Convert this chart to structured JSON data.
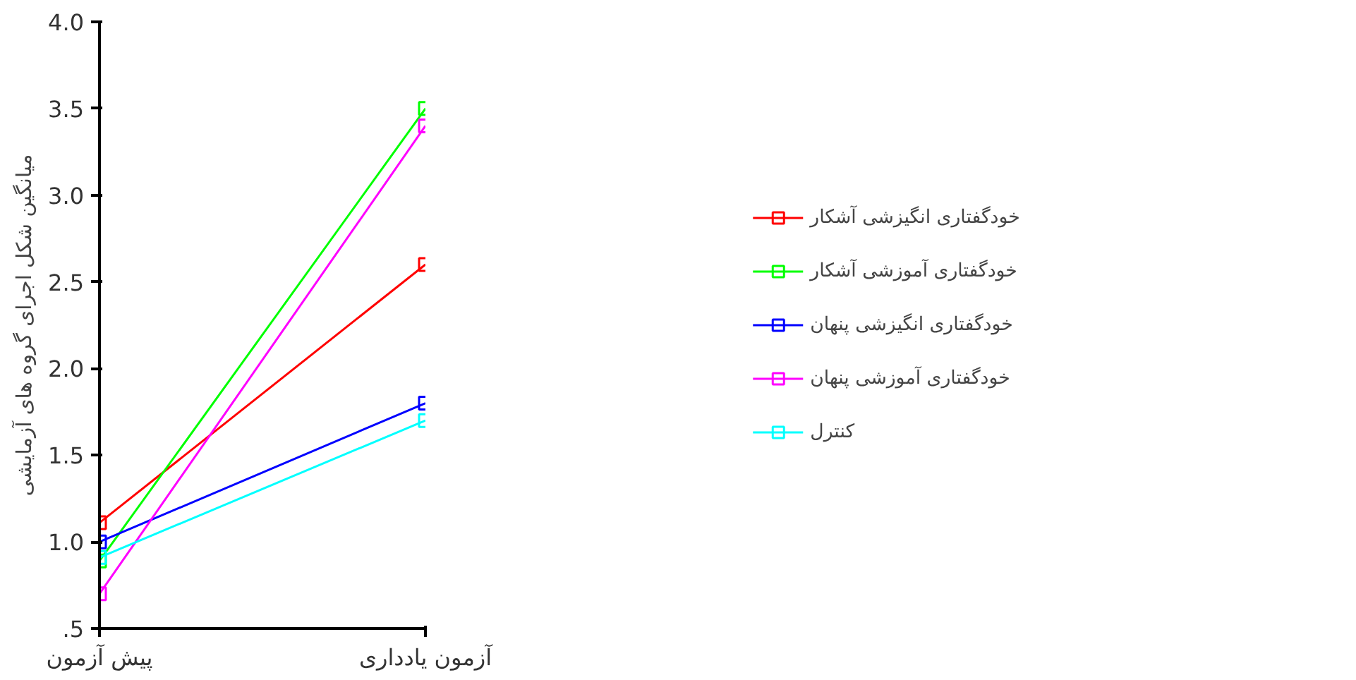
{
  "chart_data": {
    "type": "line",
    "ylabel": "میانگین شکل اجرای گروه های آزمایشی",
    "categories": [
      "پیش آزمون",
      "آزمون یادداری"
    ],
    "ylim": [
      0.5,
      4.0
    ],
    "yticks": [
      {
        "value": 0.5,
        "label": ".5"
      },
      {
        "value": 1.0,
        "label": "1.0"
      },
      {
        "value": 1.5,
        "label": "1.5"
      },
      {
        "value": 2.0,
        "label": "2.0"
      },
      {
        "value": 2.5,
        "label": "2.5"
      },
      {
        "value": 3.0,
        "label": "3.0"
      },
      {
        "value": 3.5,
        "label": "3.5"
      },
      {
        "value": 4.0,
        "label": "4.0"
      }
    ],
    "grid": false,
    "legend": "right",
    "marker": "square",
    "line_style": "solid",
    "series": [
      {
        "name": "خودگفتاری انگیزشی آشکار",
        "color": "#ff0000",
        "values": [
          1.11,
          2.6
        ]
      },
      {
        "name": "خودگفتاری آموزشی آشکار",
        "color": "#00ff00",
        "values": [
          0.89,
          3.5
        ]
      },
      {
        "name": "خودگفتاری انگیزشی پنهان",
        "color": "#0000ff",
        "values": [
          1.0,
          1.8
        ]
      },
      {
        "name": "خودگفتاری آموزشی پنهان",
        "color": "#ff00ff",
        "values": [
          0.7,
          3.4
        ]
      },
      {
        "name": "کنترل",
        "color": "#00ffff",
        "values": [
          0.91,
          1.7
        ]
      }
    ]
  }
}
